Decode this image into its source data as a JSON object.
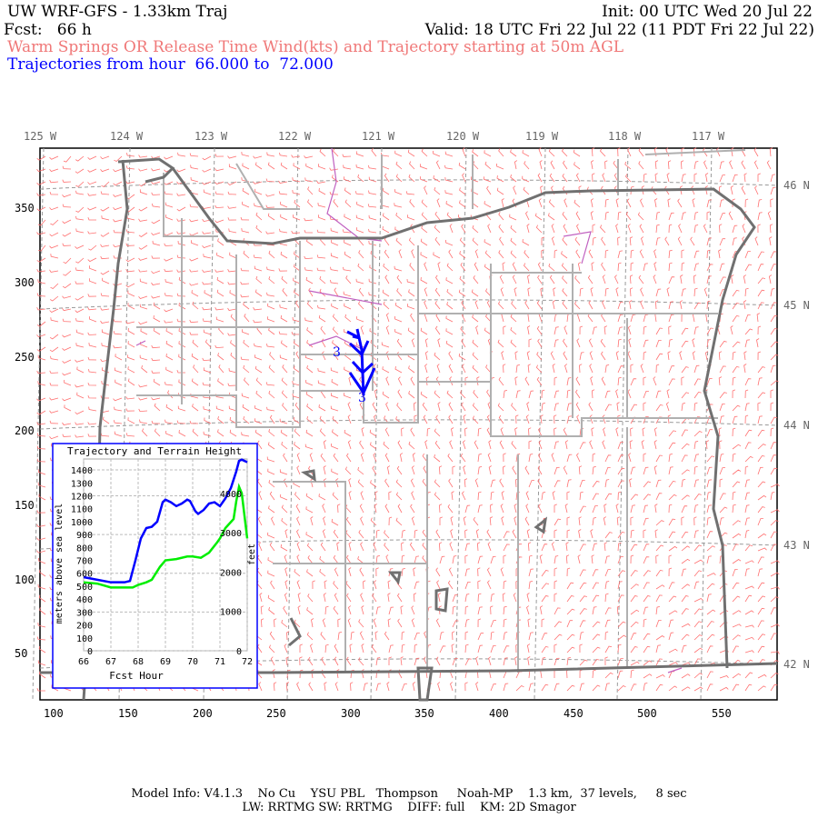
{
  "header": {
    "title": "UW WRF-GFS - 1.33km Traj",
    "init": "Init: 00 UTC Wed 20 Jul 22",
    "fcst": "Fcst:   66 h",
    "valid": "Valid: 18 UTC Fri 22 Jul 22 (11 PDT Fri 22 Jul 22)",
    "subtitle": "Warm Springs OR Release Time Wind(kts) and Trajectory starting at 50m AGL",
    "traj_range": "Trajectories from hour  66.000 to  72.000"
  },
  "map": {
    "lon_labels": [
      "125 W",
      "124 W",
      "123 W",
      "122 W",
      "121 W",
      "120 W",
      "119 W",
      "118 W",
      "117 W"
    ],
    "lat_labels": [
      "46 N",
      "45 N",
      "44 N",
      "43 N",
      "42 N"
    ],
    "x_ticks": [
      "100",
      "150",
      "200",
      "250",
      "300",
      "350",
      "400",
      "450",
      "500",
      "550"
    ],
    "y_ticks": [
      "350",
      "300",
      "250",
      "200",
      "150",
      "100",
      "50"
    ],
    "trajectory_labels": [
      "3",
      "3"
    ],
    "colors": {
      "wind": "#ff7070",
      "trajectory": "#0000ff",
      "state": "#707070",
      "county": "#b0b0b0",
      "water": "#c060c0"
    }
  },
  "chart_data": {
    "type": "line",
    "title": "Trajectory and Terrain Height",
    "xlabel": "Fcst Hour",
    "ylabel": "meters above sea level",
    "y2label": "feet",
    "xlim": [
      66,
      72
    ],
    "ylim": [
      0,
      1450
    ],
    "x_ticks": [
      "66",
      "67",
      "68",
      "69",
      "70",
      "71",
      "72"
    ],
    "y_ticks": [
      "0",
      "100",
      "200",
      "300",
      "400",
      "500",
      "600",
      "700",
      "800",
      "900",
      "1000",
      "1100",
      "1200",
      "1300",
      "1400"
    ],
    "y2_ticks": [
      "0",
      "1000",
      "2000",
      "3000",
      "4000"
    ],
    "grid": true,
    "series": [
      {
        "color": "#0000ff",
        "x": [
          66,
          66.5,
          67,
          67.5,
          67.7,
          67.9,
          68.1,
          68.3,
          68.5,
          68.7,
          68.9,
          69,
          69.2,
          69.4,
          69.6,
          69.8,
          69.9,
          70.1,
          70.2,
          70.4,
          70.6,
          70.8,
          71,
          71.2,
          71.4,
          71.6,
          71.7,
          71.8,
          72
        ],
        "y": [
          570,
          550,
          530,
          530,
          540,
          700,
          870,
          950,
          960,
          1000,
          1150,
          1170,
          1150,
          1120,
          1140,
          1170,
          1160,
          1080,
          1060,
          1090,
          1140,
          1150,
          1120,
          1180,
          1260,
          1390,
          1470,
          1480,
          1460
        ]
      },
      {
        "color": "#00ee00",
        "x": [
          66,
          66.5,
          67,
          67.5,
          67.8,
          68,
          68.3,
          68.5,
          68.8,
          69,
          69.4,
          69.8,
          70,
          70.3,
          70.6,
          70.9,
          71,
          71.2,
          71.5,
          71.6,
          71.7,
          71.8,
          72
        ],
        "y": [
          530,
          520,
          490,
          490,
          490,
          510,
          530,
          550,
          650,
          700,
          710,
          730,
          730,
          720,
          760,
          840,
          870,
          950,
          1020,
          1160,
          1270,
          1220,
          870
        ]
      }
    ]
  },
  "footer": {
    "line1": "Model Info: V4.1.3    No Cu    YSU PBL   Thompson     Noah-MP    1.3 km,  37 levels,     8 sec",
    "line2": "LW: RRTMG SW: RRTMG    DIFF: full    KM: 2D Smagor"
  }
}
